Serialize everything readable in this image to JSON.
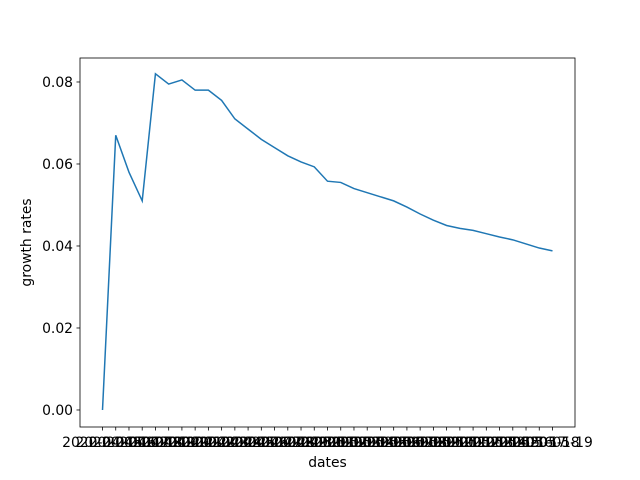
{
  "chart_data": {
    "type": "line",
    "x_label": "dates",
    "y_label": "growth rates",
    "categories": [
      "2020-04-15",
      "2020-04-16",
      "2020-04-17",
      "2020-04-18",
      "2020-04-19",
      "2020-04-20",
      "2020-04-21",
      "2020-04-22",
      "2020-04-23",
      "2020-04-24",
      "2020-04-25",
      "2020-04-26",
      "2020-04-27",
      "2020-04-28",
      "2020-04-29",
      "2020-04-30",
      "2020-05-01",
      "2020-05-02",
      "2020-05-03",
      "2020-05-04",
      "2020-05-05",
      "2020-05-06",
      "2020-05-07",
      "2020-05-08",
      "2020-05-09",
      "2020-05-10",
      "2020-05-11",
      "2020-05-12",
      "2020-05-13",
      "2020-05-14",
      "2020-05-15",
      "2020-05-16",
      "2020-05-17",
      "2020-05-18",
      "2020-05-19"
    ],
    "values": [
      0.0,
      0.067,
      0.058,
      0.051,
      0.082,
      0.0795,
      0.0805,
      0.078,
      0.078,
      0.0755,
      0.071,
      0.0685,
      0.066,
      0.064,
      0.062,
      0.0605,
      0.0593,
      0.0558,
      0.0555,
      0.054,
      0.053,
      0.052,
      0.051,
      0.0495,
      0.0478,
      0.0463,
      0.045,
      0.0443,
      0.0438,
      0.043,
      0.0422,
      0.0415,
      0.0405,
      0.0395,
      0.0388
    ],
    "color": "#1f77b4",
    "ylim": [
      -0.00415,
      0.08585
    ],
    "yticks": [
      {
        "value": 0,
        "label": "0.00"
      },
      {
        "value": 0.02,
        "label": "0.02"
      },
      {
        "value": 0.04,
        "label": "0.04"
      },
      {
        "value": 0.06,
        "label": "0.06"
      },
      {
        "value": 0.08,
        "label": "0.08"
      }
    ]
  }
}
